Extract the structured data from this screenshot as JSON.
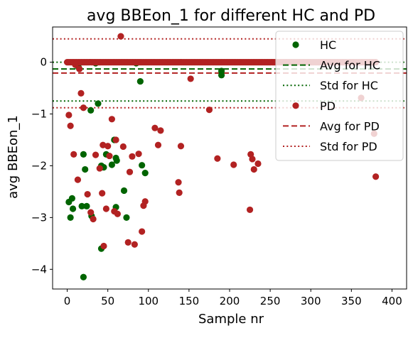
{
  "chart_data": {
    "type": "scatter",
    "title": "avg BBEon_1 for different HC and PD",
    "xlabel": "Sample nr",
    "ylabel": "avg BBEon_1",
    "xlim": [
      -18,
      418
    ],
    "ylim": [
      -4.38,
      0.68
    ],
    "xticks": [
      0,
      50,
      100,
      150,
      200,
      250,
      300,
      350,
      400
    ],
    "yticks": [
      0,
      -1,
      -2,
      -3,
      -4
    ],
    "ytick_labels": [
      "0",
      "−1",
      "−2",
      "−3",
      "−4"
    ],
    "grid": false,
    "legend_position": "upper right",
    "legend": [
      {
        "label": "HC",
        "kind": "marker",
        "color": "#006400"
      },
      {
        "label": "Avg for HC",
        "kind": "dashed",
        "color": "#006400"
      },
      {
        "label": "Std for HC",
        "kind": "dotted",
        "color": "#006400"
      },
      {
        "label": "PD",
        "kind": "marker",
        "color": "#b22222"
      },
      {
        "label": "Avg for PD",
        "kind": "dashed",
        "color": "#b22222"
      },
      {
        "label": "Std for PD",
        "kind": "dotted",
        "color": "#b22222"
      }
    ],
    "series": [
      {
        "name": "HC",
        "color": "#006400",
        "points": [
          [
            2,
            -2.7
          ],
          [
            4,
            -3.0
          ],
          [
            6,
            -2.63
          ],
          [
            7,
            -2.83
          ],
          [
            12,
            -0.05
          ],
          [
            14,
            -0.1
          ],
          [
            18,
            -2.78
          ],
          [
            20,
            -1.78
          ],
          [
            20,
            -4.15
          ],
          [
            22,
            -2.07
          ],
          [
            24,
            -2.78
          ],
          [
            29,
            -0.93
          ],
          [
            30,
            -2.97
          ],
          [
            35,
            -0.02
          ],
          [
            38,
            -0.8
          ],
          [
            42,
            -2.0
          ],
          [
            42,
            -3.6
          ],
          [
            45,
            -2.03
          ],
          [
            48,
            -1.78
          ],
          [
            55,
            -1.98
          ],
          [
            58,
            -1.5
          ],
          [
            60,
            -1.85
          ],
          [
            60,
            -2.8
          ],
          [
            61,
            -1.9
          ],
          [
            70,
            -2.48
          ],
          [
            73,
            -3.0
          ],
          [
            85,
            -0.02
          ],
          [
            90,
            -0.37
          ],
          [
            92,
            -1.99
          ],
          [
            96,
            -2.14
          ],
          [
            190,
            -0.25
          ],
          [
            190,
            -0.17
          ]
        ]
      },
      {
        "name": "PD",
        "color": "#b22222",
        "points": [
          [
            2,
            -1.02
          ],
          [
            4,
            -1.23
          ],
          [
            8,
            -1.78
          ],
          [
            10,
            -0.05
          ],
          [
            13,
            -2.27
          ],
          [
            15,
            -0.13
          ],
          [
            17,
            -0.6
          ],
          [
            20,
            -0.88
          ],
          [
            25,
            -2.55
          ],
          [
            29,
            -2.9
          ],
          [
            32,
            -3.03
          ],
          [
            35,
            -1.79
          ],
          [
            40,
            -2.05
          ],
          [
            43,
            -2.53
          ],
          [
            44,
            -1.6
          ],
          [
            45,
            -3.55
          ],
          [
            48,
            -2.83
          ],
          [
            50,
            -1.62
          ],
          [
            52,
            -1.81
          ],
          [
            55,
            -1.1
          ],
          [
            58,
            -2.88
          ],
          [
            60,
            -1.5
          ],
          [
            62,
            -2.93
          ],
          [
            66,
            0.5
          ],
          [
            69,
            -1.63
          ],
          [
            75,
            -3.48
          ],
          [
            77,
            -2.12
          ],
          [
            80,
            -1.82
          ],
          [
            83,
            -3.52
          ],
          [
            88,
            -1.77
          ],
          [
            92,
            -3.27
          ],
          [
            94,
            -2.77
          ],
          [
            96,
            -2.69
          ],
          [
            108,
            -1.27
          ],
          [
            112,
            -1.6
          ],
          [
            115,
            -1.32
          ],
          [
            137,
            -2.32
          ],
          [
            138,
            -2.52
          ],
          [
            140,
            -1.62
          ],
          [
            152,
            -0.32
          ],
          [
            175,
            -0.92
          ],
          [
            185,
            -1.86
          ],
          [
            205,
            -1.98
          ],
          [
            225,
            -2.85
          ],
          [
            226,
            -1.78
          ],
          [
            228,
            -1.87
          ],
          [
            230,
            -2.07
          ],
          [
            235,
            -1.96
          ],
          [
            362,
            -0.69
          ],
          [
            378,
            -1.38
          ],
          [
            380,
            -2.21
          ]
        ],
        "zero_row_x_from": 0,
        "zero_row_x_to": 380,
        "zero_row_count": 195,
        "zero_row_y": 0
      }
    ],
    "reference_lines": [
      {
        "name": "Avg for HC",
        "y": -0.13,
        "color": "#006400",
        "style": "dashed"
      },
      {
        "name": "Avg for PD",
        "y": -0.21,
        "color": "#b22222",
        "style": "dashed"
      },
      {
        "name": "Std for HC",
        "y": -0.75,
        "color": "#006400",
        "style": "dotted"
      },
      {
        "name": "Std for HC",
        "y": 0.0,
        "color": "#006400",
        "style": "dotted"
      },
      {
        "name": "Std for PD",
        "y": 0.45,
        "color": "#b22222",
        "style": "dotted"
      },
      {
        "name": "Std for PD",
        "y": -0.88,
        "color": "#b22222",
        "style": "dotted"
      }
    ]
  }
}
